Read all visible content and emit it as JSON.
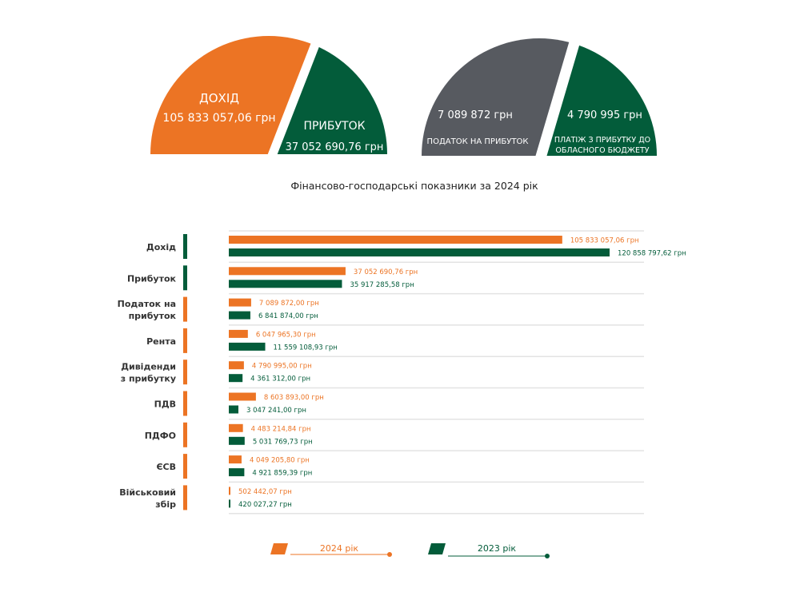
{
  "colors": {
    "orange": "#ec7424",
    "green": "#035c3a",
    "grey": "#575a60",
    "separator": "#e3e3e3"
  },
  "summary": {
    "left": {
      "income": {
        "label": "ДОХІД",
        "value": "105 833 057,06 грн"
      },
      "profit": {
        "label": "ПРИБУТОК",
        "value": "37 052 690,76 грн"
      }
    },
    "right": {
      "tax": {
        "value": "7 089 872 грн",
        "label": "ПОДАТОК НА ПРИБУТОК"
      },
      "payment": {
        "value": "4 790 995 грн",
        "label_line1": "ПЛАТІЖ З ПРИБУТКУ ДО",
        "label_line2": "ОБЛАСНОГО БЮДЖЕТУ"
      }
    }
  },
  "chart_data": {
    "type": "bar",
    "orientation": "horizontal",
    "title": "Фінансово-господарські показники за 2024 рік",
    "unit": "грн",
    "categories": [
      {
        "lines": [
          "Дохід"
        ],
        "indicator": "green"
      },
      {
        "lines": [
          "Прибуток"
        ],
        "indicator": "green"
      },
      {
        "lines": [
          "Податок на",
          "прибуток"
        ],
        "indicator": "orange"
      },
      {
        "lines": [
          "Рента"
        ],
        "indicator": "orange"
      },
      {
        "lines": [
          "Дивіденди",
          "з прибутку"
        ],
        "indicator": "orange"
      },
      {
        "lines": [
          "ПДВ"
        ],
        "indicator": "orange"
      },
      {
        "lines": [
          "ПДФО"
        ],
        "indicator": "orange"
      },
      {
        "lines": [
          "ЄСВ"
        ],
        "indicator": "orange"
      },
      {
        "lines": [
          "Військовий",
          "збір"
        ],
        "indicator": "orange"
      }
    ],
    "series": [
      {
        "name": "2024 рік",
        "color": "#ec7424",
        "values": [
          105833057.06,
          37052690.76,
          7089872.0,
          6047965.3,
          4790995.0,
          8603893.0,
          4483214.84,
          4049205.8,
          502442.07
        ],
        "labels": [
          "105 833 057,06 грн",
          "37 052 690,76 грн",
          "7 089 872,00 грн",
          "6 047 965,30 грн",
          "4 790 995,00 грн",
          "8 603 893,00 грн",
          "4 483 214,84 грн",
          "4 049 205,80 грн",
          "502 442,07 грн"
        ]
      },
      {
        "name": "2023 рік",
        "color": "#035c3a",
        "values": [
          120858797.62,
          35917285.58,
          6841874.0,
          11559108.93,
          4361312.0,
          3047241.0,
          5031769.73,
          4921859.39,
          420027.27
        ],
        "labels": [
          "120 858 797,62 грн",
          "35 917 285,58 грн",
          "6 841 874,00 грн",
          "11 559 108,93 грн",
          "4 361 312,00 грн",
          "3 047 241,00 грн",
          "5 031 769,73 грн",
          "4 921 859,39 грн",
          "420 027,27 грн"
        ]
      }
    ],
    "xlim": [
      0,
      121000000
    ],
    "grid": false,
    "legend_position": "bottom"
  }
}
